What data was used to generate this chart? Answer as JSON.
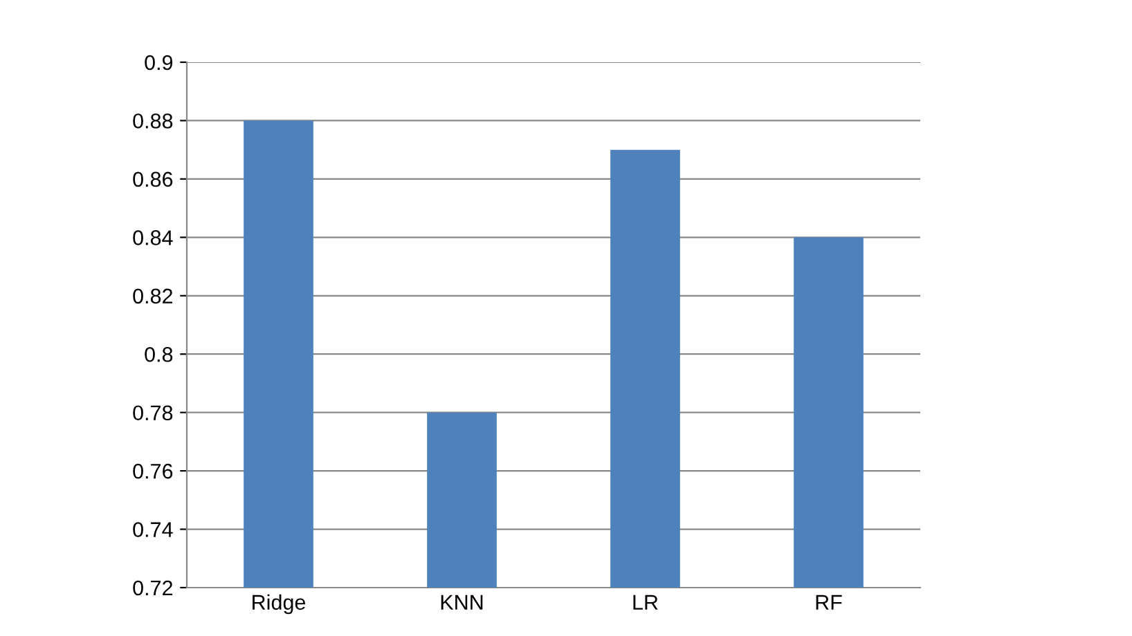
{
  "chart_data": {
    "type": "bar",
    "categories": [
      "Ridge",
      "KNN",
      "LR",
      "RF"
    ],
    "values": [
      0.88,
      0.78,
      0.87,
      0.84
    ],
    "color": "#4f81bd",
    "ylim": [
      0.72,
      0.9
    ],
    "yticks": [
      0.72,
      0.74,
      0.76,
      0.78,
      0.8,
      0.82,
      0.84,
      0.86,
      0.88,
      0.9
    ],
    "grid": "y",
    "legend": false
  }
}
